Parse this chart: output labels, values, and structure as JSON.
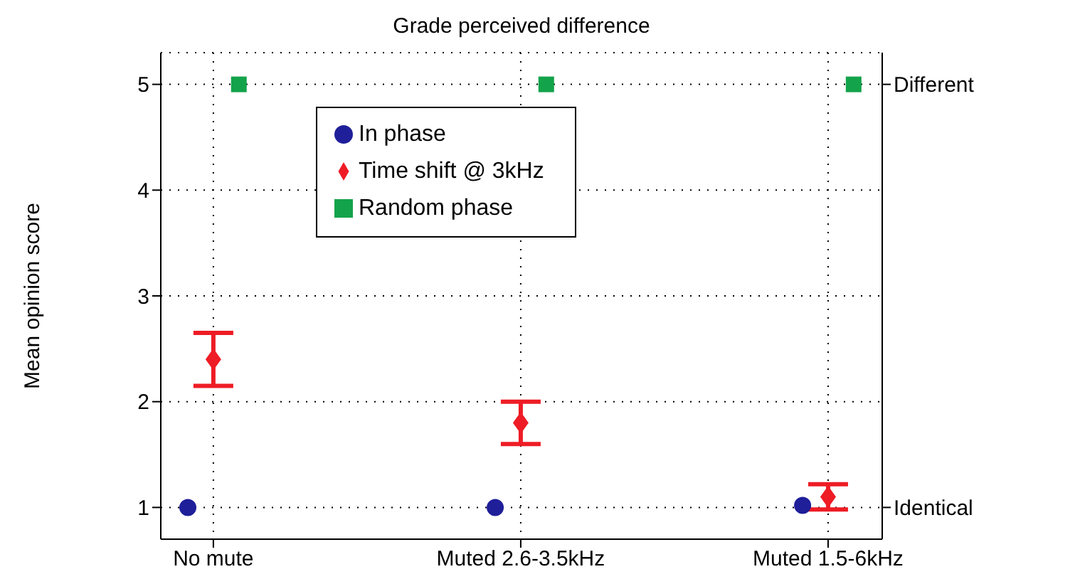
{
  "chart_data": {
    "type": "scatter",
    "title": "Grade perceived difference",
    "ylabel": "Mean opinion score",
    "categories": [
      "No mute",
      "Muted 2.6-3.5kHz",
      "Muted 1.5-6kHz"
    ],
    "series": [
      {
        "name": "In phase",
        "color": "#1f1f9a",
        "marker": "circle",
        "values": [
          1,
          1,
          1.02
        ]
      },
      {
        "name": "Time shift @ 3kHz",
        "color": "#ee1c25",
        "marker": "diamond",
        "values": [
          2.4,
          1.8,
          1.1
        ],
        "errors": [
          [
            2.15,
            2.65
          ],
          [
            1.6,
            2.0
          ],
          [
            0.98,
            1.22
          ]
        ]
      },
      {
        "name": "Random phase",
        "color": "#13a34a",
        "marker": "square",
        "values": [
          5,
          5,
          5
        ]
      }
    ],
    "ylim": [
      0.7,
      5.3
    ],
    "yticks": [
      1,
      2,
      3,
      4,
      5
    ],
    "annotations": [
      "Different",
      "Identical"
    ],
    "grid": true,
    "legend": "top"
  }
}
